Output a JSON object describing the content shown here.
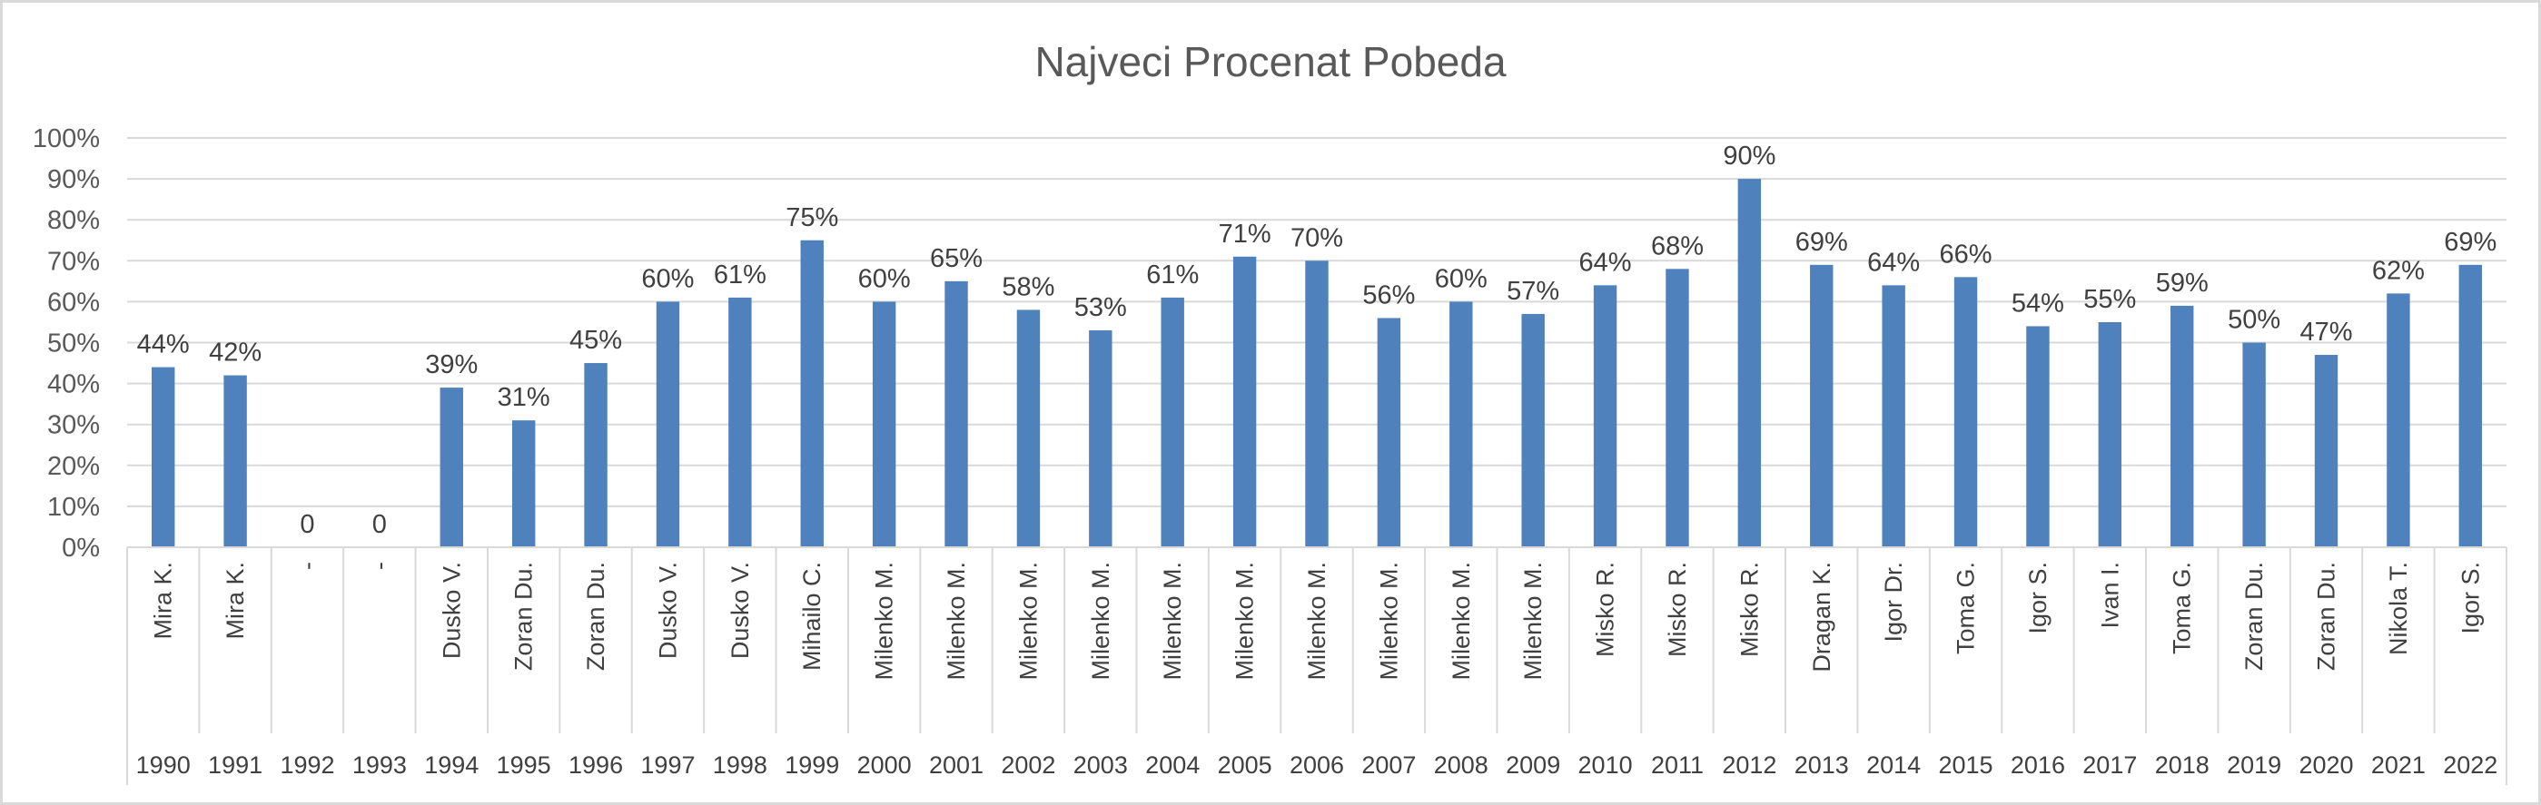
{
  "chart_data": {
    "type": "bar",
    "title": "Najveci Procenat Pobeda",
    "xlabel": "",
    "ylabel": "",
    "ylim": [
      0,
      100
    ],
    "ytick_step": 10,
    "y_unit": "%",
    "grid": true,
    "legend": "none",
    "bar_color": "#4f81bd",
    "categories": [
      "Mira K.",
      "Mira K.",
      "-",
      "-",
      "Dusko V.",
      "Zoran Du.",
      "Zoran Du.",
      "Dusko V.",
      "Dusko V.",
      "Mihailo C.",
      "Milenko M.",
      "Milenko M.",
      "Milenko M.",
      "Milenko M.",
      "Milenko M.",
      "Milenko M.",
      "Milenko M.",
      "Milenko M.",
      "Milenko M.",
      "Milenko M.",
      "Misko R.",
      "Misko R.",
      "Misko R.",
      "Dragan K.",
      "Igor Dr.",
      "Toma G.",
      "Igor S.",
      "Ivan I.",
      "Toma G.",
      "Zoran Du.",
      "Zoran Du.",
      "Nikola T.",
      "Igor S."
    ],
    "years": [
      "1990",
      "1991",
      "1992",
      "1993",
      "1994",
      "1995",
      "1996",
      "1997",
      "1998",
      "1999",
      "2000",
      "2001",
      "2002",
      "2003",
      "2004",
      "2005",
      "2006",
      "2007",
      "2008",
      "2009",
      "2010",
      "2011",
      "2012",
      "2013",
      "2014",
      "2015",
      "2016",
      "2017",
      "2018",
      "2019",
      "2020",
      "2021",
      "2022"
    ],
    "values": [
      44,
      42,
      0,
      0,
      39,
      31,
      45,
      60,
      61,
      75,
      60,
      65,
      58,
      53,
      61,
      71,
      70,
      56,
      60,
      57,
      64,
      68,
      90,
      69,
      64,
      66,
      54,
      55,
      59,
      50,
      47,
      62,
      69
    ],
    "data_labels": [
      "44%",
      "42%",
      "0",
      "0",
      "39%",
      "31%",
      "45%",
      "60%",
      "61%",
      "75%",
      "60%",
      "65%",
      "58%",
      "53%",
      "61%",
      "71%",
      "70%",
      "56%",
      "60%",
      "57%",
      "64%",
      "68%",
      "90%",
      "69%",
      "64%",
      "66%",
      "54%",
      "55%",
      "59%",
      "50%",
      "47%",
      "62%",
      "69%"
    ]
  }
}
